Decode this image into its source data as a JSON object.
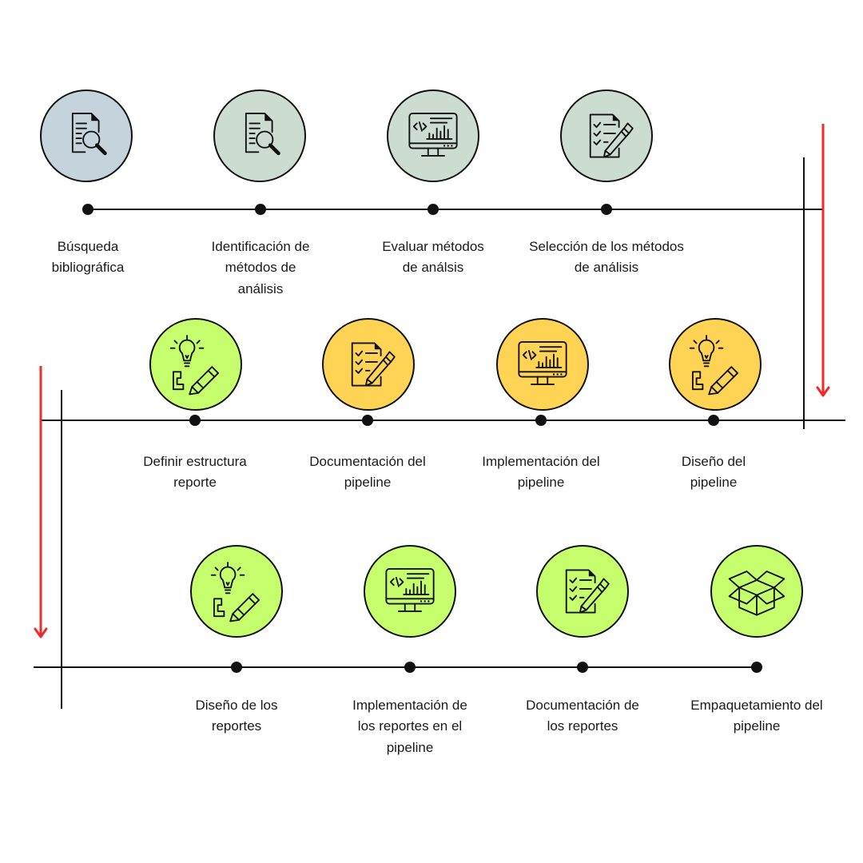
{
  "colors": {
    "gray_blue": "#c5d3dc",
    "gray_green": "#ccdcd1",
    "lime": "#c6fd6d",
    "yellow": "#ffd455",
    "arrow": "#f02a2a",
    "line": "#111111"
  },
  "rows": [
    {
      "steps": [
        {
          "label_lines": [
            "Búsqueda",
            "bibliográfica"
          ],
          "icon": "document-search-icon",
          "color": "gray_blue"
        },
        {
          "label_lines": [
            "Identificación de",
            "métodos de",
            "análisis"
          ],
          "icon": "document-search-icon",
          "color": "gray_green"
        },
        {
          "label_lines": [
            "Evaluar métodos",
            "de análsis"
          ],
          "icon": "monitor-code-chart-icon",
          "color": "gray_green"
        },
        {
          "label_lines": [
            "Selección de los métodos",
            "de análisis"
          ],
          "icon": "checklist-pen-icon",
          "color": "gray_green"
        }
      ]
    },
    {
      "steps": [
        {
          "label_lines": [
            "Definir estructura",
            "reporte"
          ],
          "icon": "idea-sketch-icon",
          "color": "lime"
        },
        {
          "label_lines": [
            "Documentación del",
            "pipeline"
          ],
          "icon": "checklist-pen-icon",
          "color": "yellow"
        },
        {
          "label_lines": [
            "Implementación del",
            "pipeline"
          ],
          "icon": "monitor-code-chart-icon",
          "color": "yellow"
        },
        {
          "label_lines": [
            "Diseño del",
            "pipeline"
          ],
          "icon": "idea-sketch-icon",
          "color": "yellow"
        }
      ]
    },
    {
      "steps": [
        {
          "label_lines": [
            "Diseño de los",
            "reportes"
          ],
          "icon": "idea-sketch-icon",
          "color": "lime"
        },
        {
          "label_lines": [
            "Implementación de",
            "los reportes en el",
            "pipeline"
          ],
          "icon": "monitor-code-chart-icon",
          "color": "lime"
        },
        {
          "label_lines": [
            "Documentación de",
            "los reportes"
          ],
          "icon": "checklist-pen-icon",
          "color": "lime"
        },
        {
          "label_lines": [
            "Empaquetamiento del",
            "pipeline"
          ],
          "icon": "open-box-icon",
          "color": "lime"
        }
      ]
    }
  ]
}
